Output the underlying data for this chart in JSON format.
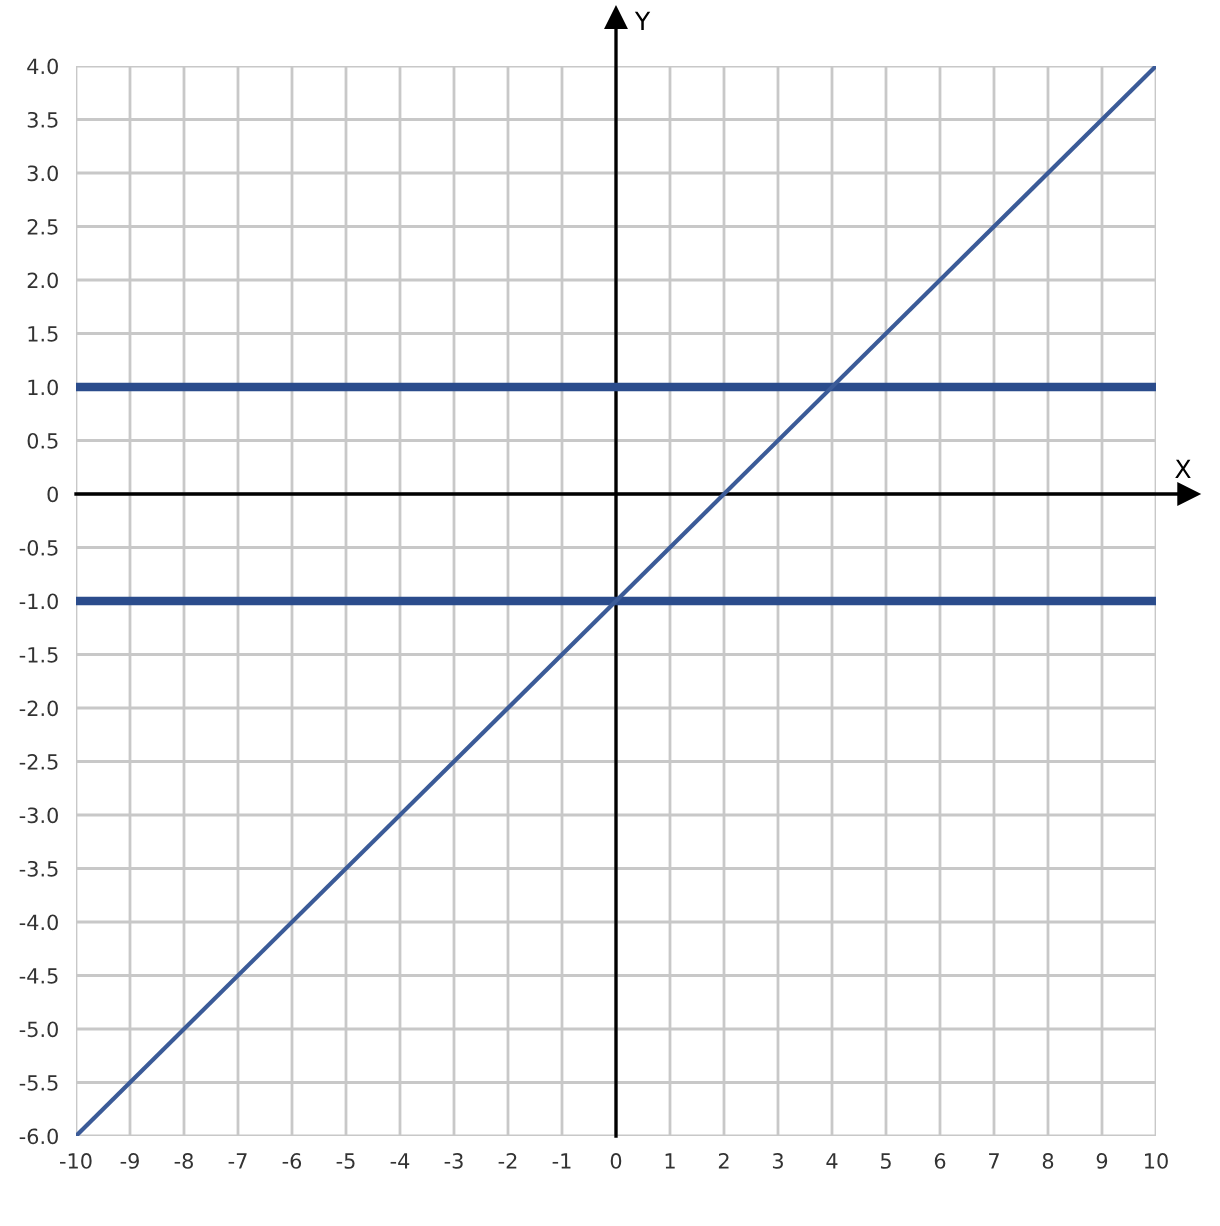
{
  "chart_data": {
    "type": "line",
    "xlabel": "X",
    "ylabel": "Y",
    "x": [
      -10,
      10
    ],
    "series": [
      {
        "color": "#3b5b98",
        "values": [
          -6,
          4
        ]
      },
      {
        "color": "#2b4c8c",
        "values": [
          1,
          1
        ]
      },
      {
        "color": "#2b4c8c",
        "values": [
          -1,
          -1
        ]
      }
    ],
    "xlim": [
      -10,
      10
    ],
    "ylim": [
      -6,
      4
    ],
    "xticks": [
      -10,
      -9,
      -8,
      -7,
      -6,
      -5,
      -4,
      -3,
      -2,
      -1,
      0,
      1,
      2,
      3,
      4,
      5,
      6,
      7,
      8,
      9,
      10
    ],
    "yticks": [
      {
        "value": 4,
        "label": "4.0"
      },
      {
        "value": 3.5,
        "label": "3.5"
      },
      {
        "value": 3,
        "label": "3.0"
      },
      {
        "value": 2.5,
        "label": "2.5"
      },
      {
        "value": 2,
        "label": "2.0"
      },
      {
        "value": 1.5,
        "label": "1.5"
      },
      {
        "value": 1,
        "label": "1.0"
      },
      {
        "value": 0.5,
        "label": "0.5"
      },
      0,
      {
        "value": -0.5,
        "label": "-0.5"
      },
      {
        "value": -1,
        "label": "-1.0"
      },
      {
        "value": -1.5,
        "label": "-1.5"
      },
      {
        "value": -2,
        "label": "-2.0"
      },
      {
        "value": -2.5,
        "label": "-2.5"
      },
      {
        "value": -3,
        "label": "-3.0"
      },
      {
        "value": -3.5,
        "label": "-3.5"
      },
      {
        "value": -4,
        "label": "-4.0"
      },
      {
        "value": -4.5,
        "label": "-4.5"
      },
      {
        "value": -5,
        "label": "-5.0"
      },
      {
        "value": -5.5,
        "label": "-5.5"
      },
      {
        "value": -6,
        "label": "-6.0"
      }
    ],
    "grid": true,
    "line_style": "solid"
  }
}
